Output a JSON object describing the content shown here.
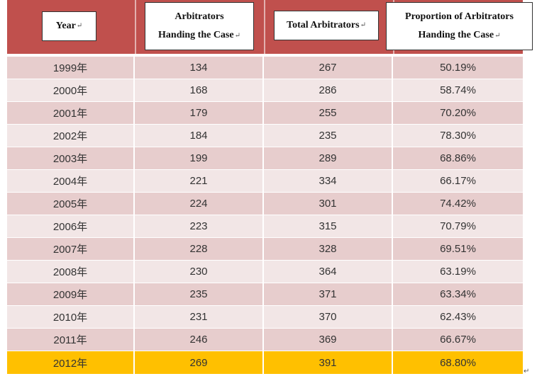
{
  "table": {
    "headers": [
      {
        "label": "Year",
        "mark": "↵"
      },
      {
        "label": "Arbitrators\nHanding the Case",
        "mark": "↵"
      },
      {
        "label": "Total Arbitrators",
        "mark": "↵"
      },
      {
        "label": "Proportion of Arbitrators\nHanding the Case",
        "mark": "↵"
      }
    ],
    "rows": [
      {
        "year": "1999年",
        "handling": "134",
        "total": "267",
        "proportion": "50.19%"
      },
      {
        "year": "2000年",
        "handling": "168",
        "total": "286",
        "proportion": "58.74%"
      },
      {
        "year": "2001年",
        "handling": "179",
        "total": "255",
        "proportion": "70.20%"
      },
      {
        "year": "2002年",
        "handling": "184",
        "total": "235",
        "proportion": "78.30%"
      },
      {
        "year": "2003年",
        "handling": "199",
        "total": "289",
        "proportion": "68.86%"
      },
      {
        "year": "2004年",
        "handling": "221",
        "total": "334",
        "proportion": "66.17%"
      },
      {
        "year": "2005年",
        "handling": "224",
        "total": "301",
        "proportion": "74.42%"
      },
      {
        "year": "2006年",
        "handling": "223",
        "total": "315",
        "proportion": "70.79%"
      },
      {
        "year": "2007年",
        "handling": "228",
        "total": "328",
        "proportion": "69.51%"
      },
      {
        "year": "2008年",
        "handling": "230",
        "total": "364",
        "proportion": "63.19%"
      },
      {
        "year": "2009年",
        "handling": "235",
        "total": "371",
        "proportion": "63.34%"
      },
      {
        "year": "2010年",
        "handling": "231",
        "total": "370",
        "proportion": "62.43%"
      },
      {
        "year": "2011年",
        "handling": "246",
        "total": "369",
        "proportion": "66.67%"
      },
      {
        "year": "2012年",
        "handling": "269",
        "total": "391",
        "proportion": "68.80%"
      }
    ],
    "highlight_row_index": 13,
    "trailing_mark": "↵"
  },
  "colors": {
    "header_band": "#c0504d",
    "row_odd": "#e7cdcd",
    "row_even": "#f2e6e6",
    "row_highlight": "#ffc000"
  }
}
